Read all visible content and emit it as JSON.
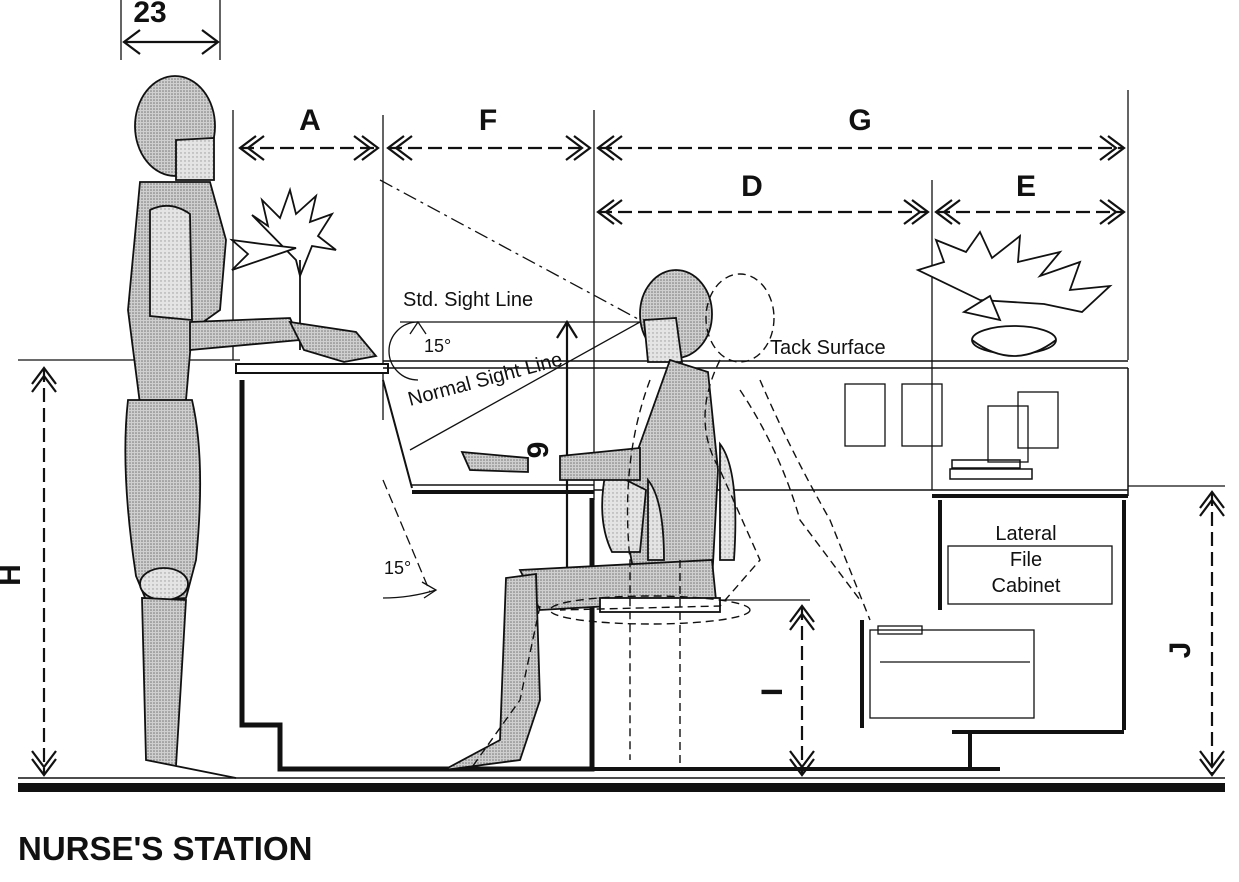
{
  "title": "NURSE'S STATION",
  "dimensions": {
    "d23": "23",
    "A": "A",
    "F": "F",
    "G": "G",
    "D": "D",
    "E": "E",
    "H": "H",
    "I": "I",
    "J": "J",
    "n9": "9"
  },
  "labels": {
    "std_sight_line": "Std. Sight Line",
    "normal_sight_line": "Normal Sight Line",
    "angle_top": "15°",
    "angle_bottom": "15°",
    "tack_surface": "Tack Surface",
    "lateral": "Lateral",
    "file": "File",
    "cabinet": "Cabinet"
  }
}
